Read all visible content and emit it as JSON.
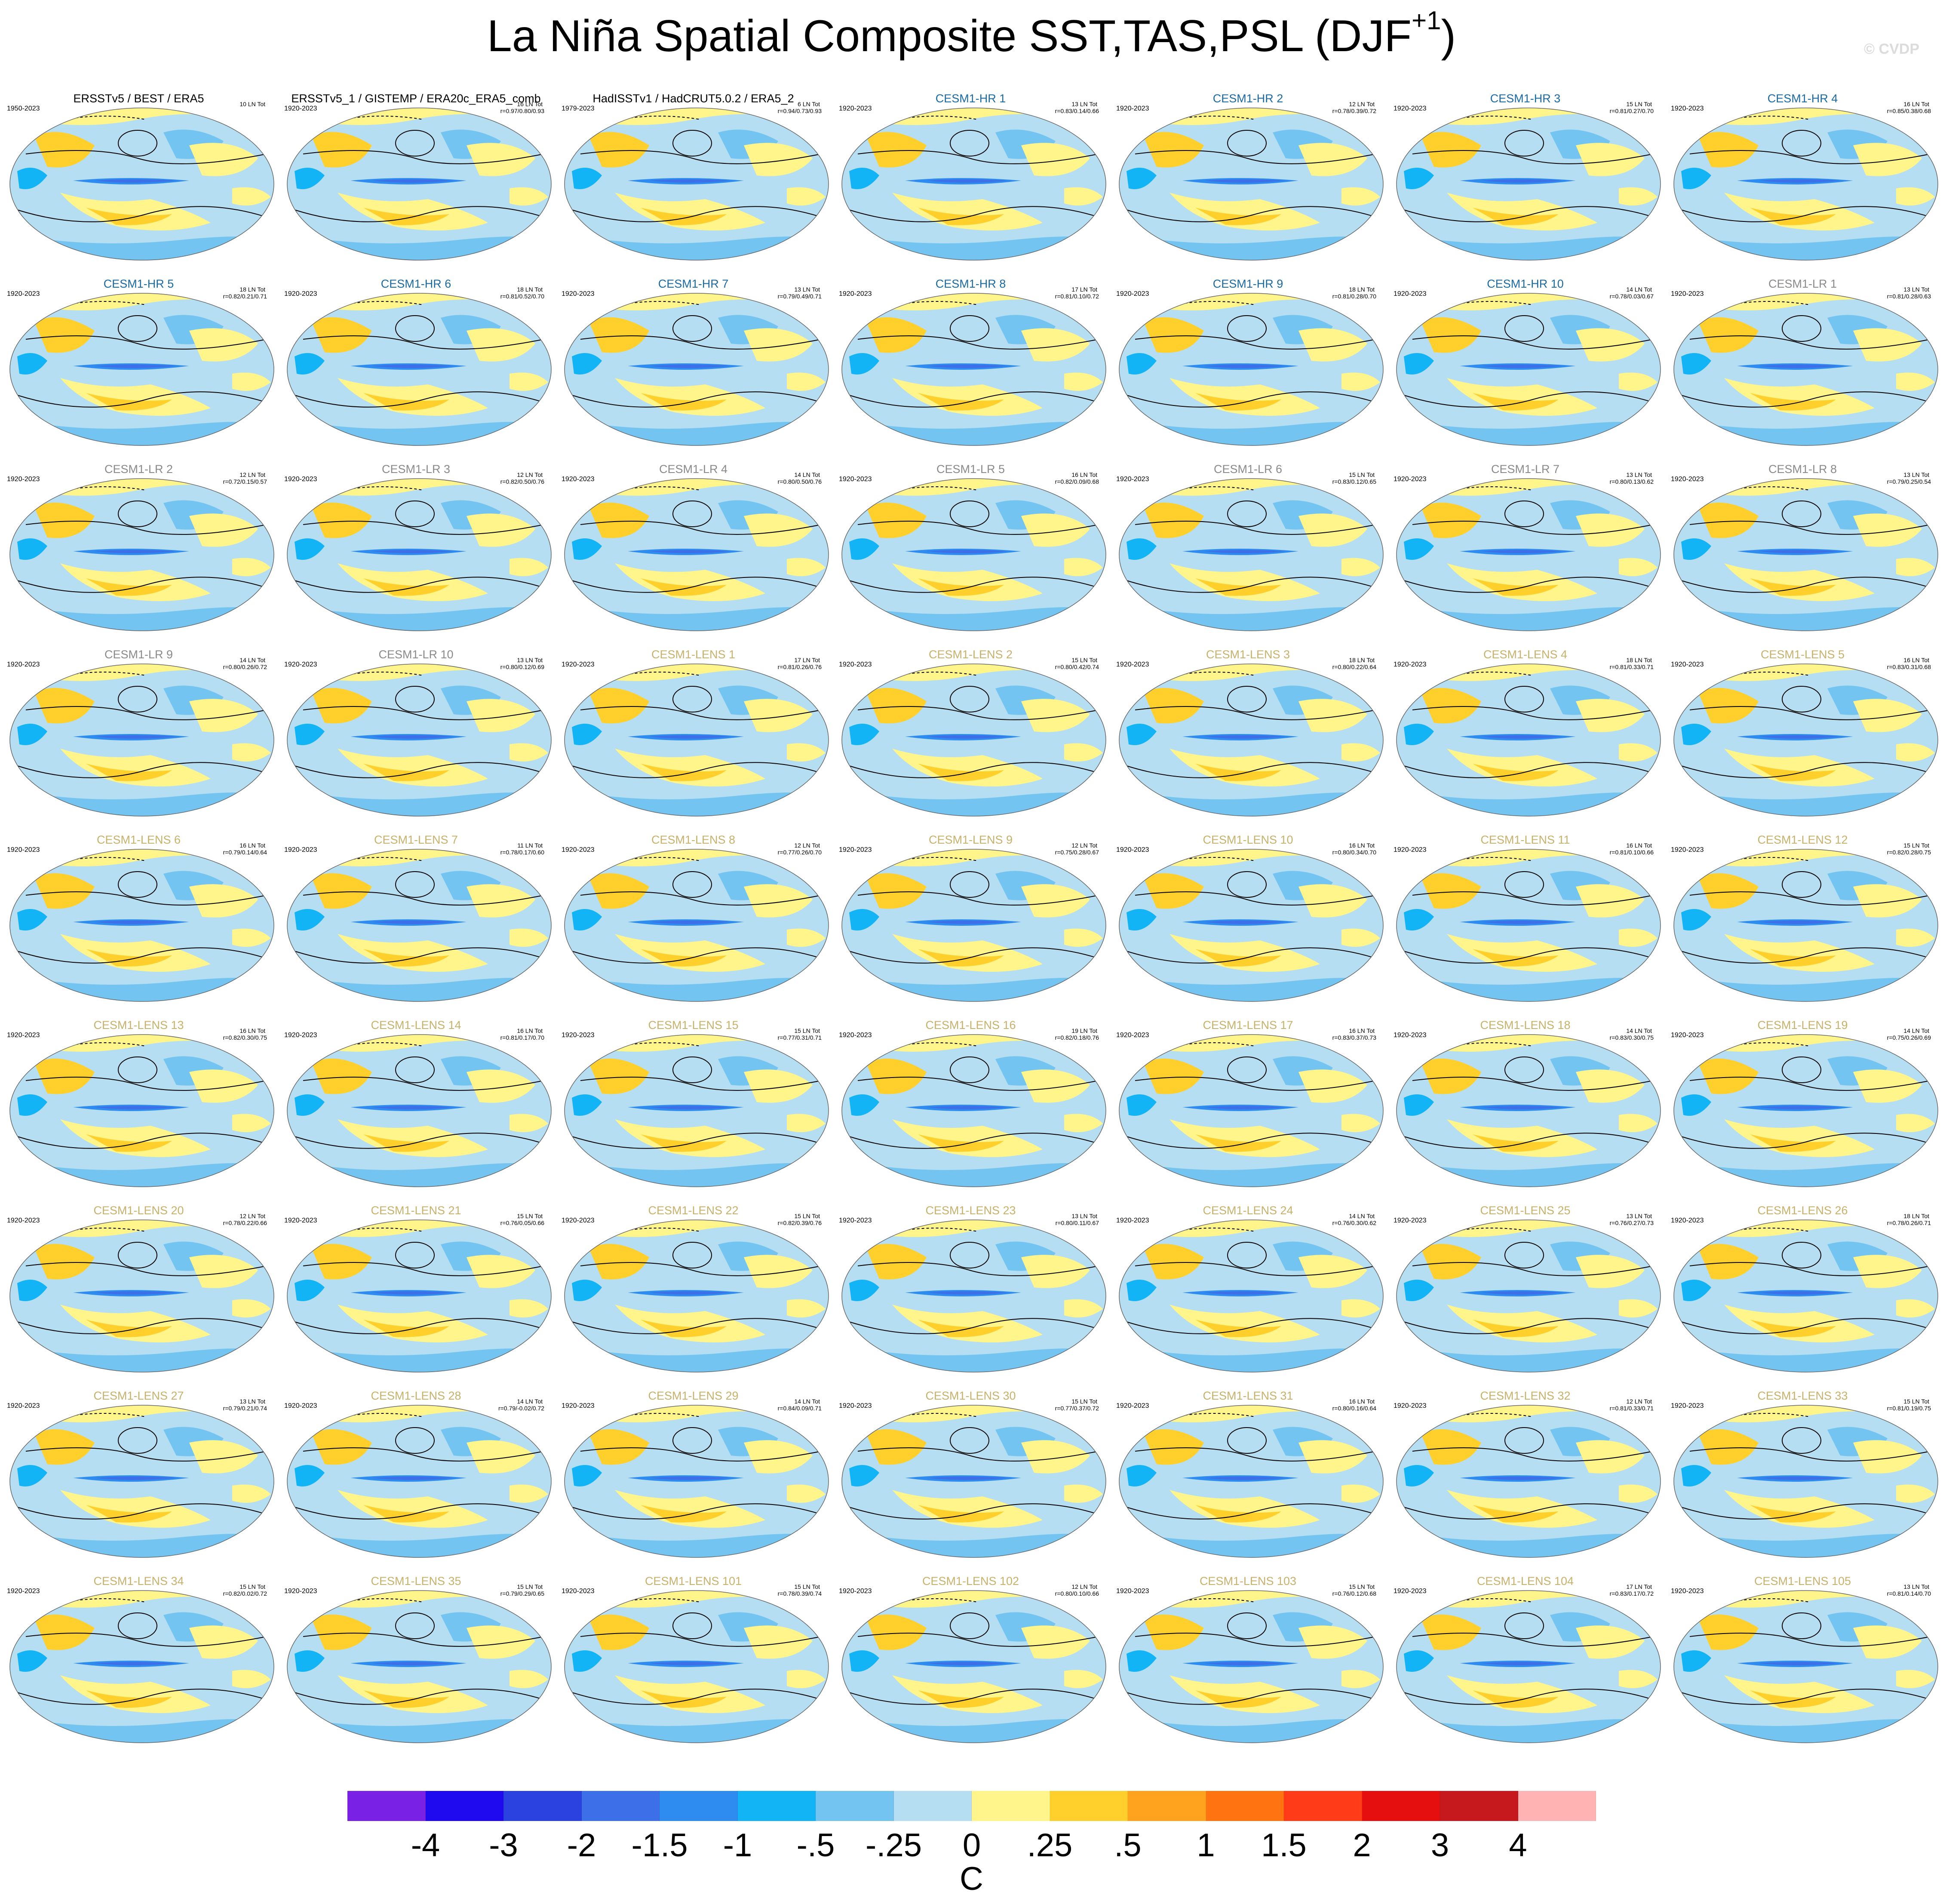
{
  "title": "La Niña Spatial Composite SST,TAS,PSL (DJF",
  "title_sup": "+1",
  "title_close": ")",
  "watermark": "© CVDP",
  "panels": [
    {
      "name": "ERSSTv5 / BEST / ERA5",
      "years": "1950-2023",
      "tot": "10 LN Tot",
      "r": "",
      "cls": "obs"
    },
    {
      "name": "ERSSTv5_1 / GISTEMP / ERA20c_ERA5_comb",
      "years": "1920-2023",
      "tot": "16 LN Tot",
      "r": "r=0.97/0.80/0.93",
      "cls": "obs"
    },
    {
      "name": "HadISSTv1 / HadCRUT5.0.2 / ERA5_2",
      "years": "1979-2023",
      "tot": "6 LN Tot",
      "r": "r=0.94/0.73/0.93",
      "cls": "obs"
    },
    {
      "name": "CESM1-HR 1",
      "years": "1920-2023",
      "tot": "13 LN Tot",
      "r": "r=0.83/0.14/0.66",
      "cls": "hr"
    },
    {
      "name": "CESM1-HR 2",
      "years": "1920-2023",
      "tot": "12 LN Tot",
      "r": "r=0.78/0.39/0.72",
      "cls": "hr"
    },
    {
      "name": "CESM1-HR 3",
      "years": "1920-2023",
      "tot": "15 LN Tot",
      "r": "r=0.81/0.27/0.70",
      "cls": "hr"
    },
    {
      "name": "CESM1-HR 4",
      "years": "1920-2023",
      "tot": "16 LN Tot",
      "r": "r=0.85/0.38/0.68",
      "cls": "hr"
    },
    {
      "name": "CESM1-HR 5",
      "years": "1920-2023",
      "tot": "18 LN Tot",
      "r": "r=0.82/0.21/0.71",
      "cls": "hr"
    },
    {
      "name": "CESM1-HR 6",
      "years": "1920-2023",
      "tot": "18 LN Tot",
      "r": "r=0.81/0.52/0.70",
      "cls": "hr"
    },
    {
      "name": "CESM1-HR 7",
      "years": "1920-2023",
      "tot": "13 LN Tot",
      "r": "r=0.79/0.49/0.71",
      "cls": "hr"
    },
    {
      "name": "CESM1-HR 8",
      "years": "1920-2023",
      "tot": "17 LN Tot",
      "r": "r=0.81/0.10/0.72",
      "cls": "hr"
    },
    {
      "name": "CESM1-HR 9",
      "years": "1920-2023",
      "tot": "18 LN Tot",
      "r": "r=0.81/0.28/0.70",
      "cls": "hr"
    },
    {
      "name": "CESM1-HR 10",
      "years": "1920-2023",
      "tot": "14 LN Tot",
      "r": "r=0.78/0.03/0.67",
      "cls": "hr"
    },
    {
      "name": "CESM1-LR 1",
      "years": "1920-2023",
      "tot": "13 LN Tot",
      "r": "r=0.81/0.28/0.63",
      "cls": "lr"
    },
    {
      "name": "CESM1-LR 2",
      "years": "1920-2023",
      "tot": "12 LN Tot",
      "r": "r=0.72/0.15/0.57",
      "cls": "lr"
    },
    {
      "name": "CESM1-LR 3",
      "years": "1920-2023",
      "tot": "12 LN Tot",
      "r": "r=0.82/0.50/0.76",
      "cls": "lr"
    },
    {
      "name": "CESM1-LR 4",
      "years": "1920-2023",
      "tot": "14 LN Tot",
      "r": "r=0.80/0.50/0.76",
      "cls": "lr"
    },
    {
      "name": "CESM1-LR 5",
      "years": "1920-2023",
      "tot": "16 LN Tot",
      "r": "r=0.82/0.09/0.68",
      "cls": "lr"
    },
    {
      "name": "CESM1-LR 6",
      "years": "1920-2023",
      "tot": "15 LN Tot",
      "r": "r=0.83/0.12/0.65",
      "cls": "lr"
    },
    {
      "name": "CESM1-LR 7",
      "years": "1920-2023",
      "tot": "13 LN Tot",
      "r": "r=0.80/0.13/0.62",
      "cls": "lr"
    },
    {
      "name": "CESM1-LR 8",
      "years": "1920-2023",
      "tot": "13 LN Tot",
      "r": "r=0.79/0.25/0.54",
      "cls": "lr"
    },
    {
      "name": "CESM1-LR 9",
      "years": "1920-2023",
      "tot": "14 LN Tot",
      "r": "r=0.80/0.26/0.72",
      "cls": "lr"
    },
    {
      "name": "CESM1-LR 10",
      "years": "1920-2023",
      "tot": "13 LN Tot",
      "r": "r=0.80/0.12/0.69",
      "cls": "lr"
    },
    {
      "name": "CESM1-LENS 1",
      "years": "1920-2023",
      "tot": "17 LN Tot",
      "r": "r=0.81/0.26/0.76",
      "cls": "lens"
    },
    {
      "name": "CESM1-LENS 2",
      "years": "1920-2023",
      "tot": "15 LN Tot",
      "r": "r=0.80/0.42/0.74",
      "cls": "lens"
    },
    {
      "name": "CESM1-LENS 3",
      "years": "1920-2023",
      "tot": "18 LN Tot",
      "r": "r=0.80/0.22/0.64",
      "cls": "lens"
    },
    {
      "name": "CESM1-LENS 4",
      "years": "1920-2023",
      "tot": "18 LN Tot",
      "r": "r=0.81/0.33/0.71",
      "cls": "lens"
    },
    {
      "name": "CESM1-LENS 5",
      "years": "1920-2023",
      "tot": "16 LN Tot",
      "r": "r=0.83/0.31/0.68",
      "cls": "lens"
    },
    {
      "name": "CESM1-LENS 6",
      "years": "1920-2023",
      "tot": "16 LN Tot",
      "r": "r=0.79/0.14/0.64",
      "cls": "lens"
    },
    {
      "name": "CESM1-LENS 7",
      "years": "1920-2023",
      "tot": "11 LN Tot",
      "r": "r=0.78/0.17/0.60",
      "cls": "lens"
    },
    {
      "name": "CESM1-LENS 8",
      "years": "1920-2023",
      "tot": "12 LN Tot",
      "r": "r=0.77/0.26/0.70",
      "cls": "lens"
    },
    {
      "name": "CESM1-LENS 9",
      "years": "1920-2023",
      "tot": "12 LN Tot",
      "r": "r=0.75/0.28/0.67",
      "cls": "lens"
    },
    {
      "name": "CESM1-LENS 10",
      "years": "1920-2023",
      "tot": "16 LN Tot",
      "r": "r=0.80/0.34/0.70",
      "cls": "lens"
    },
    {
      "name": "CESM1-LENS 11",
      "years": "1920-2023",
      "tot": "16 LN Tot",
      "r": "r=0.81/0.10/0.66",
      "cls": "lens"
    },
    {
      "name": "CESM1-LENS 12",
      "years": "1920-2023",
      "tot": "15 LN Tot",
      "r": "r=0.82/0.28/0.75",
      "cls": "lens"
    },
    {
      "name": "CESM1-LENS 13",
      "years": "1920-2023",
      "tot": "16 LN Tot",
      "r": "r=0.82/0.30/0.75",
      "cls": "lens"
    },
    {
      "name": "CESM1-LENS 14",
      "years": "1920-2023",
      "tot": "16 LN Tot",
      "r": "r=0.81/0.17/0.70",
      "cls": "lens"
    },
    {
      "name": "CESM1-LENS 15",
      "years": "1920-2023",
      "tot": "15 LN Tot",
      "r": "r=0.77/0.31/0.71",
      "cls": "lens"
    },
    {
      "name": "CESM1-LENS 16",
      "years": "1920-2023",
      "tot": "19 LN Tot",
      "r": "r=0.82/0.18/0.76",
      "cls": "lens"
    },
    {
      "name": "CESM1-LENS 17",
      "years": "1920-2023",
      "tot": "16 LN Tot",
      "r": "r=0.83/0.37/0.73",
      "cls": "lens"
    },
    {
      "name": "CESM1-LENS 18",
      "years": "1920-2023",
      "tot": "14 LN Tot",
      "r": "r=0.83/0.30/0.75",
      "cls": "lens"
    },
    {
      "name": "CESM1-LENS 19",
      "years": "1920-2023",
      "tot": "14 LN Tot",
      "r": "r=0.75/0.26/0.69",
      "cls": "lens"
    },
    {
      "name": "CESM1-LENS 20",
      "years": "1920-2023",
      "tot": "12 LN Tot",
      "r": "r=0.78/0.22/0.66",
      "cls": "lens"
    },
    {
      "name": "CESM1-LENS 21",
      "years": "1920-2023",
      "tot": "15 LN Tot",
      "r": "r=0.76/0.05/0.66",
      "cls": "lens"
    },
    {
      "name": "CESM1-LENS 22",
      "years": "1920-2023",
      "tot": "15 LN Tot",
      "r": "r=0.82/0.39/0.76",
      "cls": "lens"
    },
    {
      "name": "CESM1-LENS 23",
      "years": "1920-2023",
      "tot": "13 LN Tot",
      "r": "r=0.80/0.11/0.67",
      "cls": "lens"
    },
    {
      "name": "CESM1-LENS 24",
      "years": "1920-2023",
      "tot": "14 LN Tot",
      "r": "r=0.76/0.30/0.62",
      "cls": "lens"
    },
    {
      "name": "CESM1-LENS 25",
      "years": "1920-2023",
      "tot": "13 LN Tot",
      "r": "r=0.76/0.27/0.73",
      "cls": "lens"
    },
    {
      "name": "CESM1-LENS 26",
      "years": "1920-2023",
      "tot": "18 LN Tot",
      "r": "r=0.78/0.26/0.71",
      "cls": "lens"
    },
    {
      "name": "CESM1-LENS 27",
      "years": "1920-2023",
      "tot": "13 LN Tot",
      "r": "r=0.79/0.21/0.74",
      "cls": "lens"
    },
    {
      "name": "CESM1-LENS 28",
      "years": "1920-2023",
      "tot": "14 LN Tot",
      "r": "r=0.79/-0.02/0.72",
      "cls": "lens"
    },
    {
      "name": "CESM1-LENS 29",
      "years": "1920-2023",
      "tot": "14 LN Tot",
      "r": "r=0.84/0.09/0.71",
      "cls": "lens"
    },
    {
      "name": "CESM1-LENS 30",
      "years": "1920-2023",
      "tot": "15 LN Tot",
      "r": "r=0.77/0.37/0.72",
      "cls": "lens"
    },
    {
      "name": "CESM1-LENS 31",
      "years": "1920-2023",
      "tot": "16 LN Tot",
      "r": "r=0.80/0.16/0.64",
      "cls": "lens"
    },
    {
      "name": "CESM1-LENS 32",
      "years": "1920-2023",
      "tot": "12 LN Tot",
      "r": "r=0.81/0.33/0.71",
      "cls": "lens"
    },
    {
      "name": "CESM1-LENS 33",
      "years": "1920-2023",
      "tot": "15 LN Tot",
      "r": "r=0.81/0.19/0.75",
      "cls": "lens"
    },
    {
      "name": "CESM1-LENS 34",
      "years": "1920-2023",
      "tot": "15 LN Tot",
      "r": "r=0.82/0.02/0.72",
      "cls": "lens"
    },
    {
      "name": "CESM1-LENS 35",
      "years": "1920-2023",
      "tot": "15 LN Tot",
      "r": "r=0.79/0.29/0.65",
      "cls": "lens"
    },
    {
      "name": "CESM1-LENS 101",
      "years": "1920-2023",
      "tot": "15 LN Tot",
      "r": "r=0.78/0.39/0.74",
      "cls": "lens"
    },
    {
      "name": "CESM1-LENS 102",
      "years": "1920-2023",
      "tot": "12 LN Tot",
      "r": "r=0.80/0.10/0.66",
      "cls": "lens"
    },
    {
      "name": "CESM1-LENS 103",
      "years": "1920-2023",
      "tot": "15 LN Tot",
      "r": "r=0.76/0.12/0.68",
      "cls": "lens"
    },
    {
      "name": "CESM1-LENS 104",
      "years": "1920-2023",
      "tot": "17 LN Tot",
      "r": "r=0.83/0.17/0.72",
      "cls": "lens"
    },
    {
      "name": "CESM1-LENS 105",
      "years": "1920-2023",
      "tot": "13 LN Tot",
      "r": "r=0.81/0.14/0.70",
      "cls": "lens"
    }
  ],
  "colorbar": {
    "colors": [
      "#7a21e6",
      "#1f0af0",
      "#2b42e0",
      "#3c6fe8",
      "#2e8cf0",
      "#12b4f5",
      "#74c4f1",
      "#b5def2",
      "#fff58a",
      "#ffcf2c",
      "#ffa21e",
      "#ff7410",
      "#ff3b18",
      "#e60f0f",
      "#c5191e",
      "#ffb3b3"
    ],
    "ticks": [
      "-4",
      "-3",
      "-2",
      "-1.5",
      "-1",
      "-.5",
      "-.25",
      "0",
      ".25",
      ".5",
      "1",
      "1.5",
      "2",
      "3",
      "4"
    ],
    "units": "C"
  }
}
